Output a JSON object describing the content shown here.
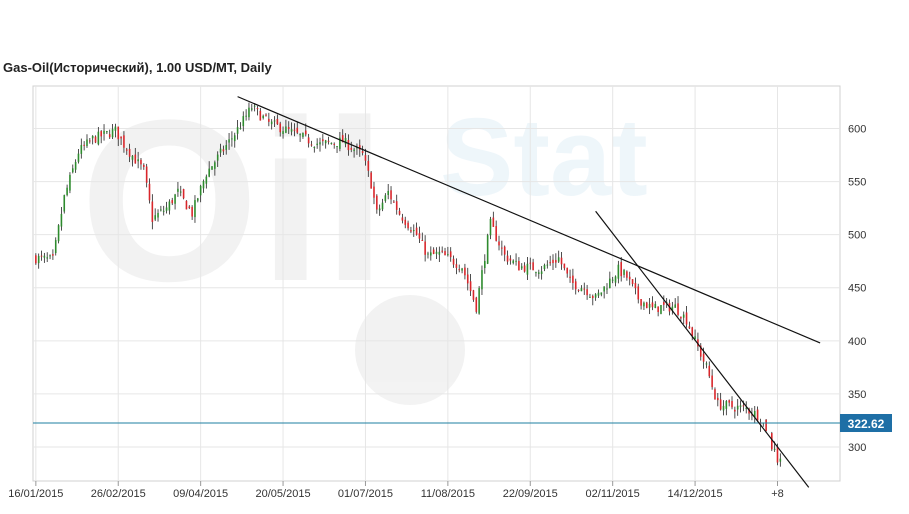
{
  "window": {
    "title": "Gas-Oil(Исторический), 1.00 USD/MT, Daily"
  },
  "watermark": {
    "text_main": "Oil",
    "text_side": "Stat"
  },
  "price_marker": {
    "label": "322.62",
    "value": 322.62,
    "color": "#1e6fa6"
  },
  "colors": {
    "up": "#2e8b2e",
    "down": "#d9262b",
    "grid": "#e6e6e6",
    "trendline": "#111111",
    "price_line": "#1e7fa0"
  },
  "chart_data": {
    "type": "candlestick",
    "title": "Gas-Oil(Исторический), 1.00 USD/MT, Daily",
    "ylim": [
      268,
      640
    ],
    "y_ticks": [
      300,
      350,
      400,
      450,
      500,
      550,
      600
    ],
    "y_tick_labels": [
      "300",
      "350",
      "400",
      "450",
      "500",
      "550",
      "600"
    ],
    "x_ticks": [
      {
        "bar": 0,
        "label": "16/01/2015"
      },
      {
        "bar": 29,
        "label": "26/02/2015"
      },
      {
        "bar": 58,
        "label": "09/04/2015"
      },
      {
        "bar": 87,
        "label": "20/05/2015"
      },
      {
        "bar": 116,
        "label": "01/07/2015"
      },
      {
        "bar": 145,
        "label": "11/08/2015"
      },
      {
        "bar": 174,
        "label": "22/09/2015"
      },
      {
        "bar": 203,
        "label": "02/11/2015"
      },
      {
        "bar": 232,
        "label": "14/12/2015"
      },
      {
        "bar": 261,
        "label": "+8"
      }
    ],
    "x_range": [
      -1,
      283
    ],
    "grid": true,
    "close_anchors": [
      [
        0,
        478
      ],
      [
        6,
        476
      ],
      [
        10,
        535
      ],
      [
        15,
        578
      ],
      [
        20,
        590
      ],
      [
        28,
        598
      ],
      [
        31,
        585
      ],
      [
        38,
        560
      ],
      [
        41,
        515
      ],
      [
        46,
        525
      ],
      [
        50,
        540
      ],
      [
        55,
        520
      ],
      [
        60,
        558
      ],
      [
        66,
        580
      ],
      [
        70,
        595
      ],
      [
        76,
        620
      ],
      [
        82,
        605
      ],
      [
        87,
        600
      ],
      [
        95,
        590
      ],
      [
        100,
        585
      ],
      [
        108,
        588
      ],
      [
        115,
        575
      ],
      [
        118,
        548
      ],
      [
        120,
        520
      ],
      [
        124,
        540
      ],
      [
        128,
        520
      ],
      [
        134,
        500
      ],
      [
        138,
        480
      ],
      [
        142,
        482
      ],
      [
        145,
        478
      ],
      [
        150,
        470
      ],
      [
        155,
        432
      ],
      [
        158,
        480
      ],
      [
        160,
        510
      ],
      [
        165,
        480
      ],
      [
        170,
        470
      ],
      [
        178,
        468
      ],
      [
        184,
        478
      ],
      [
        188,
        455
      ],
      [
        193,
        450
      ],
      [
        197,
        440
      ],
      [
        200,
        450
      ],
      [
        205,
        467
      ],
      [
        208,
        460
      ],
      [
        212,
        440
      ],
      [
        217,
        430
      ],
      [
        220,
        432
      ],
      [
        225,
        432
      ],
      [
        229,
        420
      ],
      [
        232,
        400
      ],
      [
        236,
        375
      ],
      [
        240,
        340
      ],
      [
        245,
        338
      ],
      [
        250,
        336
      ],
      [
        254,
        330
      ],
      [
        257,
        318
      ],
      [
        259,
        300
      ],
      [
        262,
        285
      ]
    ],
    "gaps": [
      [
        258,
        258
      ]
    ],
    "price_line": 322.62,
    "trendlines": [
      {
        "from": [
          71,
          630
        ],
        "to": [
          276,
          398
        ]
      },
      {
        "from": [
          197,
          522
        ],
        "to": [
          272,
          262
        ]
      }
    ]
  }
}
